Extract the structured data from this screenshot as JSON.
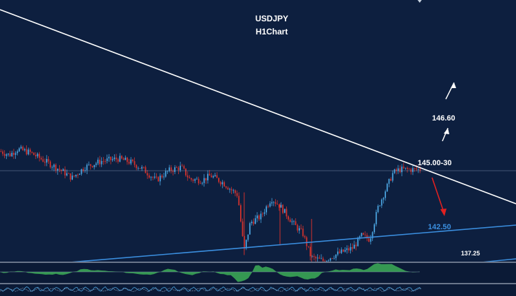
{
  "chart_data": {
    "type": "candlestick",
    "title": "USDJPY",
    "subtitle": "H1Chart",
    "colors": {
      "background": "#0d1f3f",
      "bull": "#4aa3df",
      "bear": "#d2322d",
      "resistance_line": "#ffffff",
      "support_line": "#3b8fe0",
      "target_up": "#ffffff",
      "target_down_arrow": "#e02020",
      "target_down_label": "#3b8fe0",
      "oscillator_fill": "#3aa655"
    },
    "price_path": [
      [
        0,
        146.6
      ],
      [
        0.02,
        146.3
      ],
      [
        0.04,
        146.8
      ],
      [
        0.07,
        146.5
      ],
      [
        0.1,
        145.9
      ],
      [
        0.14,
        145.1
      ],
      [
        0.17,
        144.4
      ],
      [
        0.2,
        145.3
      ],
      [
        0.24,
        145.8
      ],
      [
        0.28,
        146.0
      ],
      [
        0.31,
        145.7
      ],
      [
        0.34,
        145.1
      ],
      [
        0.37,
        144.2
      ],
      [
        0.4,
        145.0
      ],
      [
        0.43,
        145.3
      ],
      [
        0.45,
        144.3
      ],
      [
        0.48,
        144.2
      ],
      [
        0.5,
        144.6
      ],
      [
        0.53,
        144.0
      ],
      [
        0.55,
        143.4
      ],
      [
        0.565,
        143.0
      ],
      [
        0.58,
        138.3
      ],
      [
        0.595,
        140.7
      ],
      [
        0.62,
        141.2
      ],
      [
        0.645,
        142.7
      ],
      [
        0.665,
        142.1
      ],
      [
        0.7,
        140.5
      ],
      [
        0.72,
        139.8
      ],
      [
        0.74,
        137.8
      ],
      [
        0.77,
        137.5
      ],
      [
        0.79,
        137.9
      ],
      [
        0.81,
        138.2
      ],
      [
        0.84,
        138.6
      ],
      [
        0.86,
        139.6
      ],
      [
        0.88,
        139.3
      ],
      [
        0.9,
        142.0
      ],
      [
        0.92,
        143.6
      ],
      [
        0.935,
        144.8
      ],
      [
        0.95,
        145.1
      ]
    ],
    "annotations": {
      "resistance_zone": "145.00-30",
      "upper_target": "146.60",
      "lower_target": "142.50",
      "support_level": "137.25"
    },
    "indicators": [
      "oscillator",
      "stochastic"
    ]
  }
}
